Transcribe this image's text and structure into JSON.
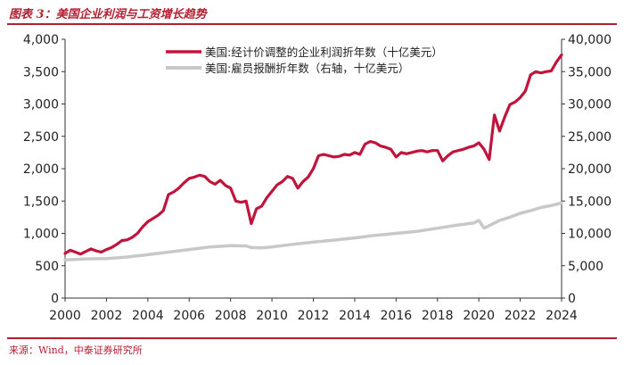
{
  "figure_title": "图表 3：美国企业利润与工资增长趋势",
  "source_note": "来源：Wind，中泰证券研究所",
  "colors": {
    "accent": "#b41e30",
    "profit_line": "#c0143c",
    "wage_line": "#c8c8c8",
    "axis": "#333333"
  },
  "chart_data": {
    "type": "line",
    "x_ticks": [
      "2000",
      "2002",
      "2004",
      "2006",
      "2008",
      "2010",
      "2012",
      "2014",
      "2016",
      "2018",
      "2020",
      "2022",
      "2024"
    ],
    "xlim": [
      2000,
      2024
    ],
    "y_left": {
      "ticks": [
        "0",
        "500",
        "1,000",
        "1,500",
        "2,000",
        "2,500",
        "3,000",
        "3,500",
        "4,000"
      ],
      "lim": [
        0,
        4000
      ]
    },
    "y_right": {
      "ticks": [
        "0",
        "5,000",
        "10,000",
        "15,000",
        "20,000",
        "25,000",
        "30,000",
        "35,000",
        "40,000"
      ],
      "lim": [
        0,
        40000
      ]
    },
    "legend_position": "top-center",
    "series": [
      {
        "name": "美国:经计价调整的企业利润折年数（十亿美元）",
        "axis": "left",
        "color": "#c0143c",
        "x": [
          2000,
          2000.25,
          2000.5,
          2000.75,
          2001,
          2001.25,
          2001.5,
          2001.75,
          2002,
          2002.25,
          2002.5,
          2002.75,
          2003,
          2003.25,
          2003.5,
          2003.75,
          2004,
          2004.25,
          2004.5,
          2004.75,
          2005,
          2005.25,
          2005.5,
          2005.75,
          2006,
          2006.25,
          2006.5,
          2006.75,
          2007,
          2007.25,
          2007.5,
          2007.75,
          2008,
          2008.25,
          2008.5,
          2008.75,
          2009,
          2009.25,
          2009.5,
          2009.75,
          2010,
          2010.25,
          2010.5,
          2010.75,
          2011,
          2011.25,
          2011.5,
          2011.75,
          2012,
          2012.25,
          2012.5,
          2012.75,
          2013,
          2013.25,
          2013.5,
          2013.75,
          2014,
          2014.25,
          2014.5,
          2014.75,
          2015,
          2015.25,
          2015.5,
          2015.75,
          2016,
          2016.25,
          2016.5,
          2016.75,
          2017,
          2017.25,
          2017.5,
          2017.75,
          2018,
          2018.25,
          2018.5,
          2018.75,
          2019,
          2019.25,
          2019.5,
          2019.75,
          2020,
          2020.25,
          2020.5,
          2020.75,
          2021,
          2021.25,
          2021.5,
          2021.75,
          2022,
          2022.25,
          2022.5,
          2022.75,
          2023,
          2023.25,
          2023.5,
          2023.75,
          2024
        ],
        "values": [
          690,
          740,
          710,
          680,
          720,
          760,
          730,
          710,
          750,
          780,
          830,
          890,
          900,
          940,
          1000,
          1100,
          1180,
          1230,
          1280,
          1350,
          1600,
          1640,
          1700,
          1780,
          1850,
          1870,
          1900,
          1880,
          1800,
          1760,
          1820,
          1740,
          1700,
          1500,
          1480,
          1500,
          1150,
          1380,
          1420,
          1550,
          1650,
          1750,
          1800,
          1880,
          1850,
          1700,
          1800,
          1870,
          2000,
          2200,
          2220,
          2200,
          2180,
          2190,
          2220,
          2210,
          2250,
          2220,
          2380,
          2420,
          2400,
          2350,
          2330,
          2300,
          2180,
          2250,
          2230,
          2250,
          2270,
          2280,
          2260,
          2280,
          2280,
          2120,
          2200,
          2260,
          2280,
          2300,
          2330,
          2350,
          2400,
          2300,
          2140,
          2830,
          2580,
          2800,
          2990,
          3030,
          3100,
          3200,
          3450,
          3500,
          3480,
          3500,
          3510,
          3650,
          3760
        ]
      },
      {
        "name": "美国:雇员报酬折年数（右轴，十亿美元）",
        "axis": "right",
        "color": "#c8c8c8",
        "x": [
          2000,
          2001,
          2002,
          2003,
          2004,
          2005,
          2006,
          2007,
          2008,
          2008.75,
          2009,
          2009.5,
          2010,
          2011,
          2012,
          2013,
          2014,
          2015,
          2016,
          2017,
          2018,
          2019,
          2019.75,
          2020,
          2020.25,
          2020.5,
          2020.75,
          2021,
          2021.5,
          2022,
          2022.5,
          2023,
          2023.5,
          2024
        ],
        "values": [
          5900,
          6050,
          6100,
          6350,
          6700,
          7100,
          7500,
          7900,
          8100,
          8050,
          7800,
          7750,
          7900,
          8300,
          8650,
          8950,
          9300,
          9700,
          10000,
          10300,
          10800,
          11300,
          11600,
          12000,
          10800,
          11200,
          11600,
          12000,
          12500,
          13100,
          13500,
          14000,
          14300,
          14700
        ]
      }
    ]
  }
}
